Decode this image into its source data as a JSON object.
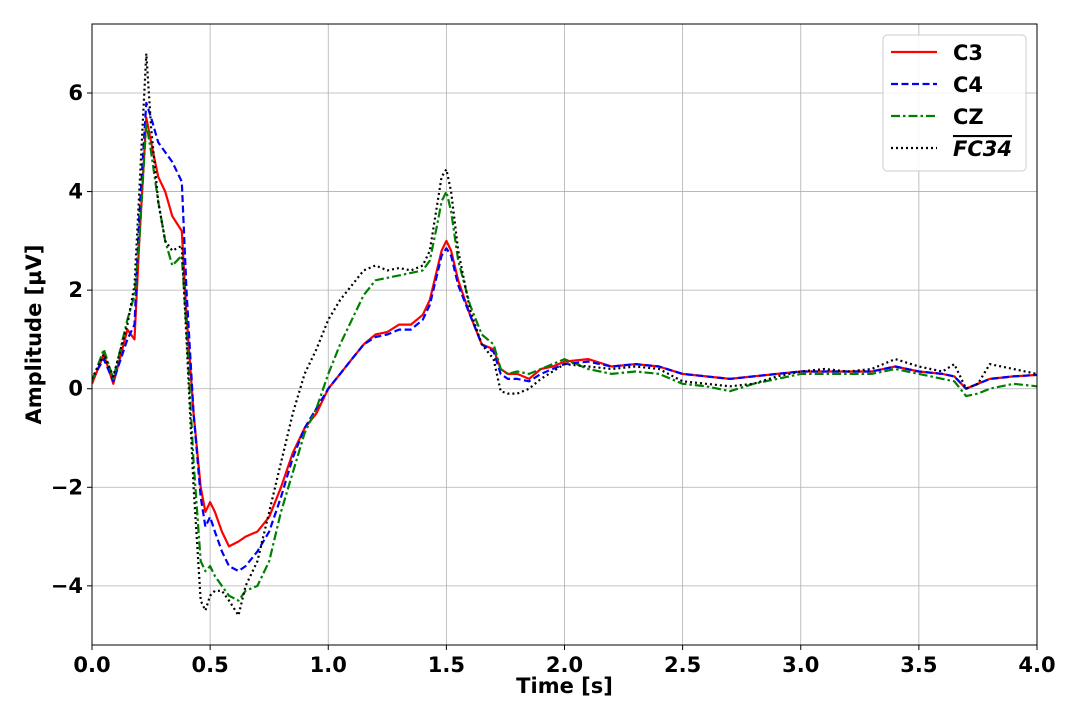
{
  "chart_data": {
    "type": "line",
    "title": "",
    "xlabel": "Time [s]",
    "ylabel": "Amplitude [µV]",
    "xlim": [
      0.0,
      4.0
    ],
    "ylim": [
      -5.2,
      7.4
    ],
    "xticks": [
      0.0,
      0.5,
      1.0,
      1.5,
      2.0,
      2.5,
      3.0,
      3.5,
      4.0
    ],
    "xtick_labels": [
      "0.0",
      "0.5",
      "1.0",
      "1.5",
      "2.0",
      "2.5",
      "3.0",
      "3.5",
      "4.0"
    ],
    "yticks": [
      -4,
      -2,
      0,
      2,
      4,
      6
    ],
    "ytick_labels": [
      "−4",
      "−2",
      "0",
      "2",
      "4",
      "6"
    ],
    "grid": true,
    "legend_position": "top-right",
    "series": [
      {
        "name": "C3",
        "color": "#ff0000",
        "style": "solid",
        "x": [
          0.0,
          0.05,
          0.09,
          0.15,
          0.18,
          0.2,
          0.23,
          0.25,
          0.28,
          0.31,
          0.34,
          0.38,
          0.4,
          0.43,
          0.46,
          0.48,
          0.5,
          0.52,
          0.55,
          0.58,
          0.62,
          0.65,
          0.7,
          0.75,
          0.8,
          0.85,
          0.9,
          0.95,
          1.0,
          1.05,
          1.1,
          1.15,
          1.2,
          1.25,
          1.3,
          1.35,
          1.4,
          1.43,
          1.46,
          1.48,
          1.5,
          1.52,
          1.55,
          1.6,
          1.65,
          1.7,
          1.73,
          1.76,
          1.8,
          1.85,
          1.9,
          1.95,
          2.0,
          2.1,
          2.2,
          2.3,
          2.4,
          2.5,
          2.6,
          2.7,
          2.8,
          2.9,
          3.0,
          3.1,
          3.2,
          3.3,
          3.4,
          3.5,
          3.6,
          3.65,
          3.7,
          3.75,
          3.8,
          3.9,
          4.0
        ],
        "values": [
          0.1,
          0.7,
          0.1,
          1.2,
          1.0,
          3.0,
          5.5,
          5.0,
          4.3,
          4.0,
          3.5,
          3.2,
          1.5,
          -0.5,
          -2.0,
          -2.5,
          -2.3,
          -2.5,
          -2.9,
          -3.2,
          -3.1,
          -3.0,
          -2.9,
          -2.6,
          -2.0,
          -1.3,
          -0.8,
          -0.5,
          0.0,
          0.3,
          0.6,
          0.9,
          1.1,
          1.15,
          1.3,
          1.3,
          1.5,
          1.8,
          2.4,
          2.8,
          3.0,
          2.8,
          2.2,
          1.5,
          0.9,
          0.8,
          0.4,
          0.3,
          0.3,
          0.2,
          0.4,
          0.45,
          0.55,
          0.6,
          0.45,
          0.5,
          0.45,
          0.3,
          0.25,
          0.2,
          0.25,
          0.3,
          0.35,
          0.35,
          0.35,
          0.35,
          0.45,
          0.35,
          0.3,
          0.25,
          0.0,
          0.1,
          0.2,
          0.25,
          0.28
        ]
      },
      {
        "name": "C4",
        "color": "#0000ff",
        "style": "dashed",
        "x": [
          0.0,
          0.05,
          0.09,
          0.15,
          0.18,
          0.2,
          0.23,
          0.25,
          0.28,
          0.31,
          0.34,
          0.38,
          0.4,
          0.43,
          0.46,
          0.48,
          0.5,
          0.52,
          0.55,
          0.58,
          0.62,
          0.65,
          0.7,
          0.75,
          0.8,
          0.85,
          0.9,
          0.95,
          1.0,
          1.05,
          1.1,
          1.15,
          1.2,
          1.25,
          1.3,
          1.35,
          1.4,
          1.43,
          1.46,
          1.48,
          1.5,
          1.52,
          1.55,
          1.6,
          1.65,
          1.7,
          1.73,
          1.76,
          1.8,
          1.85,
          1.9,
          1.95,
          2.0,
          2.1,
          2.2,
          2.3,
          2.4,
          2.5,
          2.6,
          2.7,
          2.8,
          2.9,
          3.0,
          3.1,
          3.2,
          3.3,
          3.4,
          3.5,
          3.6,
          3.65,
          3.7,
          3.75,
          3.8,
          3.9,
          4.0
        ],
        "values": [
          0.2,
          0.6,
          0.15,
          1.0,
          1.3,
          3.5,
          5.8,
          5.5,
          5.0,
          4.8,
          4.6,
          4.2,
          2.0,
          -0.5,
          -2.2,
          -2.8,
          -2.6,
          -2.9,
          -3.3,
          -3.6,
          -3.7,
          -3.6,
          -3.3,
          -2.9,
          -2.2,
          -1.4,
          -0.8,
          -0.4,
          0.0,
          0.3,
          0.6,
          0.9,
          1.05,
          1.1,
          1.2,
          1.2,
          1.4,
          1.7,
          2.3,
          2.7,
          2.85,
          2.7,
          2.1,
          1.5,
          0.9,
          0.75,
          0.3,
          0.2,
          0.2,
          0.15,
          0.3,
          0.4,
          0.5,
          0.55,
          0.45,
          0.5,
          0.45,
          0.3,
          0.25,
          0.2,
          0.25,
          0.3,
          0.35,
          0.35,
          0.35,
          0.35,
          0.45,
          0.35,
          0.3,
          0.25,
          0.0,
          0.1,
          0.2,
          0.25,
          0.28
        ]
      },
      {
        "name": "CZ",
        "color": "#008000",
        "style": "dashdot",
        "x": [
          0.0,
          0.05,
          0.09,
          0.15,
          0.18,
          0.2,
          0.23,
          0.25,
          0.28,
          0.31,
          0.34,
          0.38,
          0.4,
          0.43,
          0.46,
          0.48,
          0.5,
          0.52,
          0.55,
          0.58,
          0.62,
          0.65,
          0.7,
          0.75,
          0.8,
          0.85,
          0.9,
          0.95,
          1.0,
          1.05,
          1.1,
          1.15,
          1.2,
          1.25,
          1.3,
          1.35,
          1.4,
          1.43,
          1.46,
          1.48,
          1.5,
          1.52,
          1.55,
          1.6,
          1.65,
          1.7,
          1.73,
          1.76,
          1.8,
          1.85,
          1.9,
          1.95,
          2.0,
          2.1,
          2.2,
          2.3,
          2.4,
          2.5,
          2.6,
          2.7,
          2.8,
          2.9,
          3.0,
          3.1,
          3.2,
          3.3,
          3.4,
          3.5,
          3.6,
          3.65,
          3.7,
          3.75,
          3.8,
          3.9,
          4.0
        ],
        "values": [
          0.15,
          0.8,
          0.2,
          1.4,
          1.9,
          3.0,
          5.4,
          4.8,
          3.8,
          3.0,
          2.5,
          2.7,
          1.2,
          -1.5,
          -3.5,
          -3.7,
          -3.6,
          -3.8,
          -4.0,
          -4.2,
          -4.3,
          -4.1,
          -4.0,
          -3.5,
          -2.5,
          -1.7,
          -0.9,
          -0.4,
          0.3,
          0.9,
          1.4,
          1.9,
          2.2,
          2.25,
          2.3,
          2.35,
          2.4,
          2.6,
          3.3,
          3.8,
          4.0,
          3.6,
          2.6,
          1.7,
          1.1,
          0.9,
          0.4,
          0.3,
          0.35,
          0.3,
          0.4,
          0.5,
          0.6,
          0.4,
          0.3,
          0.35,
          0.3,
          0.1,
          0.05,
          -0.05,
          0.1,
          0.2,
          0.3,
          0.3,
          0.3,
          0.3,
          0.4,
          0.3,
          0.2,
          0.15,
          -0.15,
          -0.1,
          0.0,
          0.1,
          0.05
        ]
      },
      {
        "name": "FC34",
        "label_overline": true,
        "color": "#000000",
        "style": "dotted",
        "x": [
          0.0,
          0.05,
          0.09,
          0.15,
          0.18,
          0.2,
          0.23,
          0.25,
          0.28,
          0.31,
          0.34,
          0.38,
          0.4,
          0.43,
          0.46,
          0.48,
          0.5,
          0.52,
          0.55,
          0.58,
          0.62,
          0.65,
          0.7,
          0.75,
          0.8,
          0.85,
          0.9,
          0.95,
          1.0,
          1.05,
          1.1,
          1.15,
          1.2,
          1.25,
          1.3,
          1.35,
          1.4,
          1.43,
          1.46,
          1.48,
          1.5,
          1.52,
          1.55,
          1.6,
          1.65,
          1.7,
          1.73,
          1.76,
          1.8,
          1.85,
          1.9,
          1.95,
          2.0,
          2.1,
          2.2,
          2.3,
          2.4,
          2.5,
          2.6,
          2.7,
          2.8,
          2.9,
          3.0,
          3.1,
          3.2,
          3.3,
          3.4,
          3.5,
          3.6,
          3.65,
          3.7,
          3.75,
          3.8,
          3.9,
          4.0
        ],
        "values": [
          0.2,
          0.7,
          0.25,
          1.3,
          2.1,
          4.0,
          6.8,
          5.3,
          3.8,
          3.0,
          2.8,
          2.9,
          1.0,
          -2.0,
          -4.3,
          -4.5,
          -4.2,
          -4.1,
          -4.1,
          -4.3,
          -4.6,
          -4.0,
          -3.5,
          -2.5,
          -1.5,
          -0.5,
          0.3,
          0.8,
          1.4,
          1.8,
          2.1,
          2.4,
          2.5,
          2.4,
          2.45,
          2.4,
          2.5,
          2.8,
          3.7,
          4.3,
          4.45,
          4.0,
          2.8,
          1.6,
          0.9,
          0.6,
          -0.05,
          -0.1,
          -0.1,
          0.0,
          0.2,
          0.35,
          0.5,
          0.45,
          0.4,
          0.45,
          0.4,
          0.15,
          0.1,
          0.05,
          0.1,
          0.25,
          0.35,
          0.4,
          0.35,
          0.4,
          0.6,
          0.45,
          0.35,
          0.5,
          0.0,
          0.1,
          0.5,
          0.4,
          0.3
        ]
      }
    ]
  }
}
